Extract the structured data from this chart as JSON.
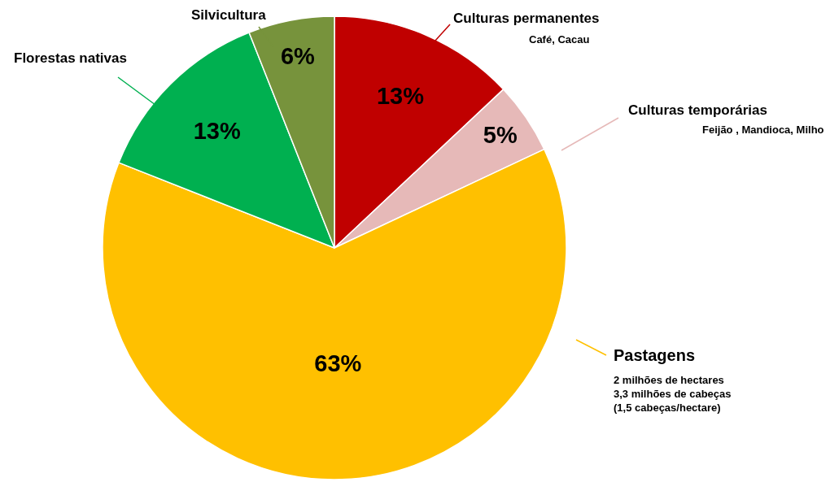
{
  "chart_data": {
    "type": "pie",
    "categories": [
      "Culturas permanentes",
      "Culturas temporárias",
      "Pastagens",
      "Florestas nativas",
      "Silvicultura"
    ],
    "values": [
      13,
      5,
      63,
      13,
      6
    ],
    "colors": [
      "#c00000",
      "#e6b9b8",
      "#ffc000",
      "#00b050",
      "#77933c"
    ],
    "value_labels": [
      "13%",
      "5%",
      "63%",
      "13%",
      "6%"
    ],
    "legend": false,
    "annotations": [
      "Café, Cacau",
      "Feijão , Mandioca, Milho",
      "2 milhões de hectares\n3,3 milhões de cabeças\n(1,5 cabeças/hectare)"
    ]
  }
}
